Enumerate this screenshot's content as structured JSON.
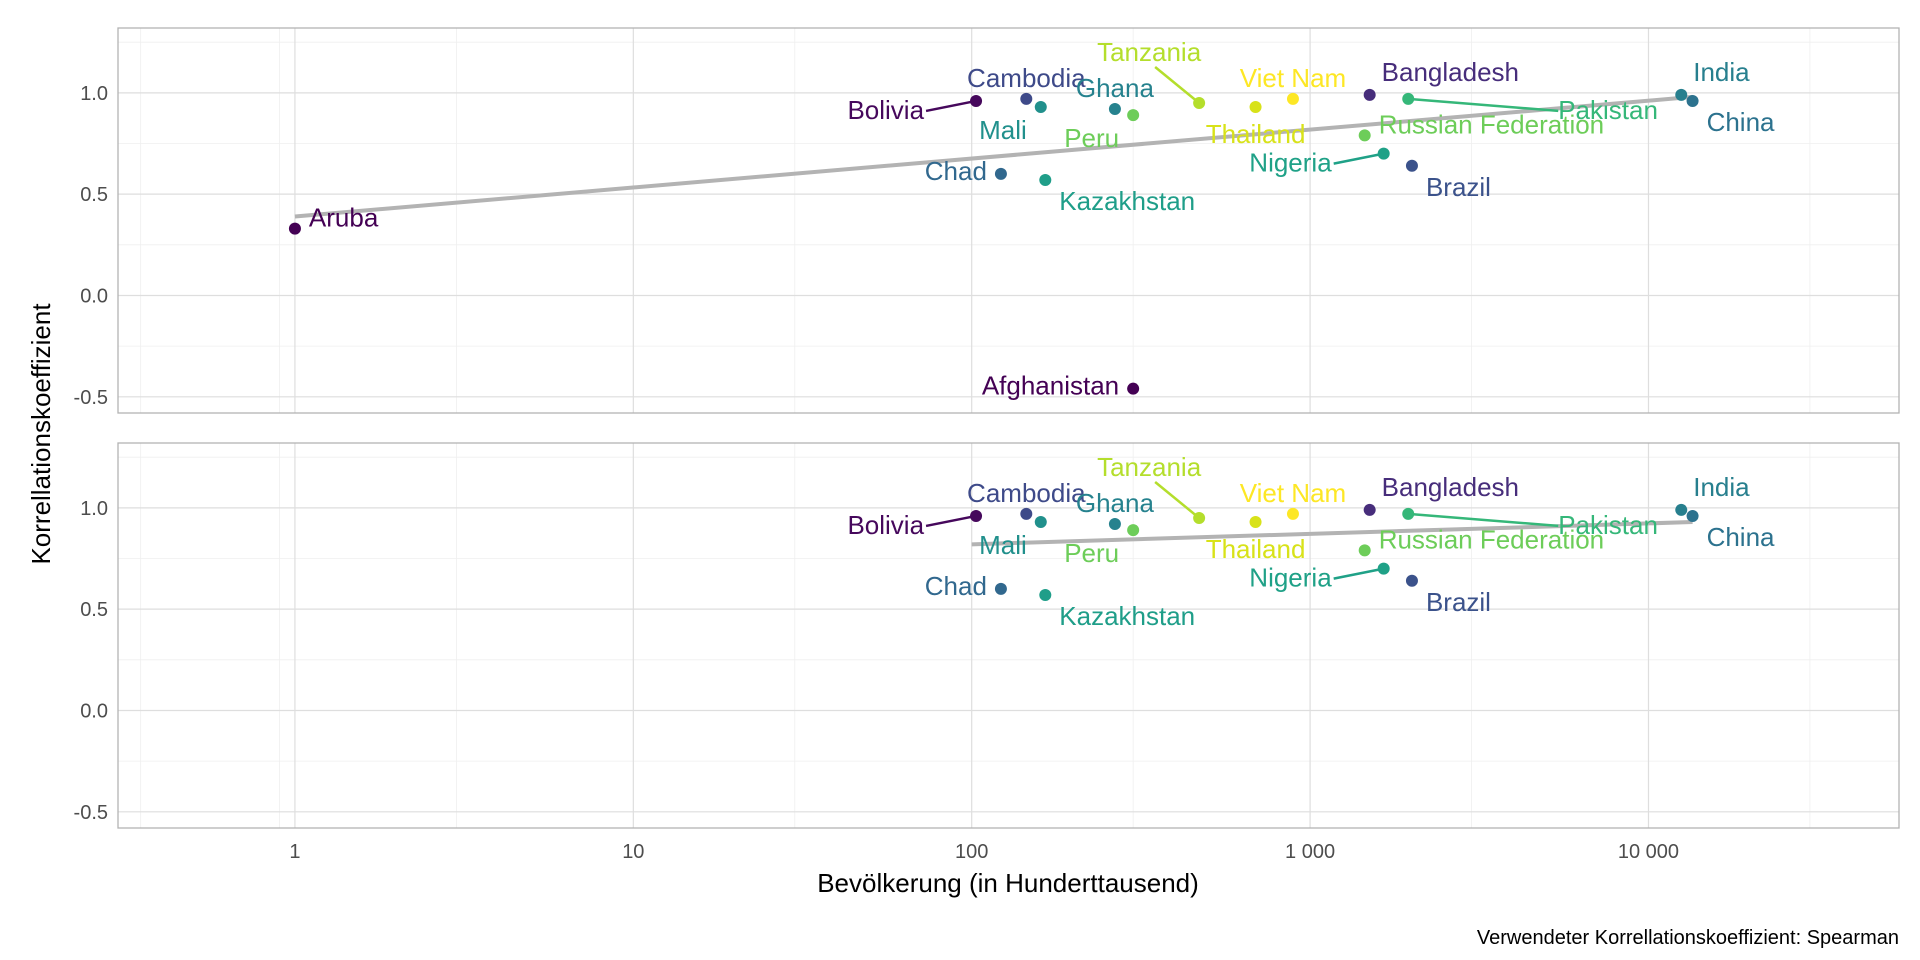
{
  "chart_data": {
    "type": "scatter",
    "xlabel": "Bevölkerung (in Hunderttausend)",
    "ylabel": "Korrellationskoeffizient",
    "caption": "Verwendeter Korrellationskoeffizient: Spearman",
    "x_scale": "log10",
    "xlim": [
      0.3,
      55000
    ],
    "ylim": [
      -0.58,
      1.32
    ],
    "x_ticks": [
      {
        "value": 1,
        "label": "1"
      },
      {
        "value": 10,
        "label": "10"
      },
      {
        "value": 100,
        "label": "100"
      },
      {
        "value": 1000,
        "label": "1 000"
      },
      {
        "value": 10000,
        "label": "10 000"
      }
    ],
    "y_ticks": [
      {
        "value": -0.5,
        "label": "-0.5"
      },
      {
        "value": 0.0,
        "label": "0.0"
      },
      {
        "value": 0.5,
        "label": "0.5"
      },
      {
        "value": 1.0,
        "label": "1.0"
      }
    ],
    "grid": true,
    "legend": "none",
    "panels": [
      {
        "trend": {
          "x": [
            1,
            13500
          ],
          "y": [
            0.39,
            0.98
          ]
        },
        "points": [
          {
            "name": "Aruba",
            "x": 1.0,
            "y": 0.33,
            "color": "#440154",
            "label_pos": "right"
          },
          {
            "name": "Afghanistan",
            "x": 300,
            "y": -0.46,
            "color": "#440154",
            "label_pos": "left"
          },
          {
            "name": "Bolivia",
            "x": 103,
            "y": 0.96,
            "color": "#46085C",
            "label_pos": "leader-left-down"
          },
          {
            "name": "Cambodia",
            "x": 145,
            "y": 0.97,
            "color": "#3E4A89",
            "label_pos": "up"
          },
          {
            "name": "Mali",
            "x": 160,
            "y": 0.93,
            "color": "#21908C",
            "label_pos": "down-left"
          },
          {
            "name": "Chad",
            "x": 122,
            "y": 0.6,
            "color": "#31688E",
            "label_pos": "left"
          },
          {
            "name": "Kazakhstan",
            "x": 165,
            "y": 0.57,
            "color": "#1F9E89",
            "label_pos": "down-right"
          },
          {
            "name": "Ghana",
            "x": 265,
            "y": 0.92,
            "color": "#26828E",
            "label_pos": "up"
          },
          {
            "name": "Peru",
            "x": 300,
            "y": 0.89,
            "color": "#6DCD59",
            "label_pos": "down-left"
          },
          {
            "name": "Tanzania",
            "x": 470,
            "y": 0.95,
            "color": "#B4DE2C",
            "label_pos": "leader-up"
          },
          {
            "name": "Thailand",
            "x": 690,
            "y": 0.93,
            "color": "#D8E219",
            "label_pos": "down"
          },
          {
            "name": "Viet Nam",
            "x": 890,
            "y": 0.97,
            "color": "#FDE725",
            "label_pos": "up"
          },
          {
            "name": "Bangladesh",
            "x": 1500,
            "y": 0.99,
            "color": "#472D7B",
            "label_pos": "up-right"
          },
          {
            "name": "Russian Federation",
            "x": 1450,
            "y": 0.79,
            "color": "#6DCD59",
            "label_pos": "right"
          },
          {
            "name": "Nigeria",
            "x": 1650,
            "y": 0.7,
            "color": "#1FA187",
            "label_pos": "leader-left-down"
          },
          {
            "name": "Brazil",
            "x": 2000,
            "y": 0.64,
            "color": "#3B528B",
            "label_pos": "down-right"
          },
          {
            "name": "Pakistan",
            "x": 1950,
            "y": 0.97,
            "color": "#35B779",
            "label_pos": "leader-right-down"
          },
          {
            "name": "India",
            "x": 12500,
            "y": 0.99,
            "color": "#277F8E",
            "label_pos": "up-right"
          },
          {
            "name": "China",
            "x": 13500,
            "y": 0.96,
            "color": "#2C728E",
            "label_pos": "down-right"
          }
        ]
      },
      {
        "trend": {
          "x": [
            100,
            13500
          ],
          "y": [
            0.82,
            0.93
          ]
        },
        "points": [
          {
            "name": "Bolivia",
            "x": 103,
            "y": 0.96,
            "color": "#46085C",
            "label_pos": "leader-left-down"
          },
          {
            "name": "Cambodia",
            "x": 145,
            "y": 0.97,
            "color": "#3E4A89",
            "label_pos": "up"
          },
          {
            "name": "Mali",
            "x": 160,
            "y": 0.93,
            "color": "#21908C",
            "label_pos": "down-left"
          },
          {
            "name": "Chad",
            "x": 122,
            "y": 0.6,
            "color": "#31688E",
            "label_pos": "left"
          },
          {
            "name": "Kazakhstan",
            "x": 165,
            "y": 0.57,
            "color": "#1F9E89",
            "label_pos": "down-right"
          },
          {
            "name": "Ghana",
            "x": 265,
            "y": 0.92,
            "color": "#26828E",
            "label_pos": "up"
          },
          {
            "name": "Peru",
            "x": 300,
            "y": 0.89,
            "color": "#6DCD59",
            "label_pos": "down-left"
          },
          {
            "name": "Tanzania",
            "x": 470,
            "y": 0.95,
            "color": "#B4DE2C",
            "label_pos": "leader-up"
          },
          {
            "name": "Thailand",
            "x": 690,
            "y": 0.93,
            "color": "#D8E219",
            "label_pos": "down"
          },
          {
            "name": "Viet Nam",
            "x": 890,
            "y": 0.97,
            "color": "#FDE725",
            "label_pos": "up"
          },
          {
            "name": "Bangladesh",
            "x": 1500,
            "y": 0.99,
            "color": "#472D7B",
            "label_pos": "up-right"
          },
          {
            "name": "Russian Federation",
            "x": 1450,
            "y": 0.79,
            "color": "#6DCD59",
            "label_pos": "right"
          },
          {
            "name": "Nigeria",
            "x": 1650,
            "y": 0.7,
            "color": "#1FA187",
            "label_pos": "leader-left-down"
          },
          {
            "name": "Brazil",
            "x": 2000,
            "y": 0.64,
            "color": "#3B528B",
            "label_pos": "down-right"
          },
          {
            "name": "Pakistan",
            "x": 1950,
            "y": 0.97,
            "color": "#35B779",
            "label_pos": "leader-right-down"
          },
          {
            "name": "India",
            "x": 12500,
            "y": 0.99,
            "color": "#277F8E",
            "label_pos": "up-right"
          },
          {
            "name": "China",
            "x": 13500,
            "y": 0.96,
            "color": "#2C728E",
            "label_pos": "down-right"
          }
        ]
      }
    ]
  }
}
